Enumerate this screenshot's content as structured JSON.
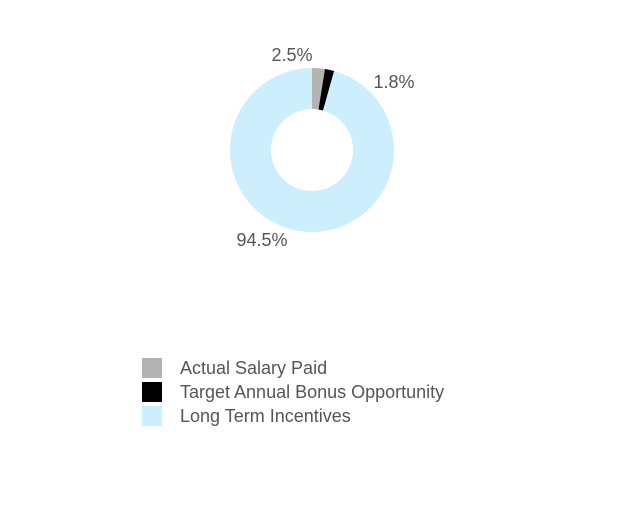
{
  "chart_data": {
    "type": "pie",
    "categories": [
      "Actual Salary Paid",
      "Target Annual Bonus Opportunity",
      "Long Term Incentives"
    ],
    "values": [
      2.5,
      1.8,
      94.5
    ],
    "value_labels": [
      "2.5%",
      "1.8%",
      "94.5%"
    ],
    "colors": [
      "#b3b3b3",
      "#000000",
      "#cdeefc"
    ]
  }
}
